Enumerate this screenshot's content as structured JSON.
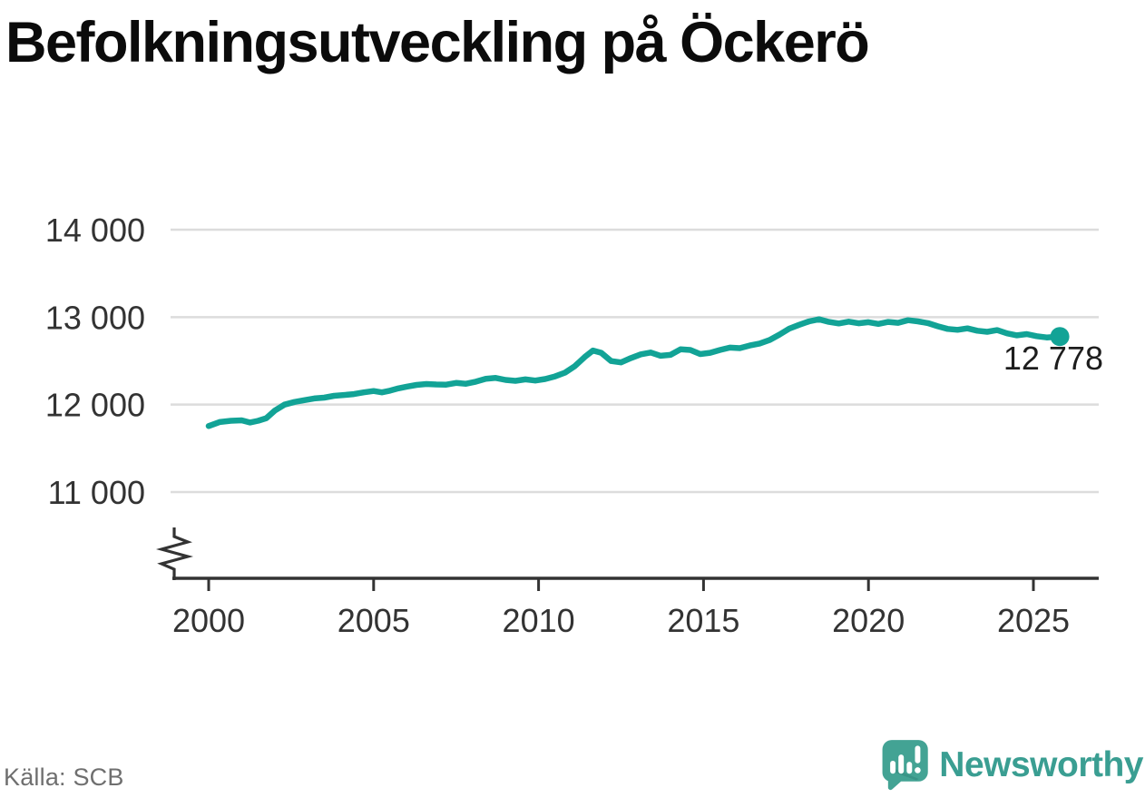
{
  "title": "Befolkningsutveckling på Öckerö",
  "source": "Källa: SCB",
  "branding": {
    "name": "Newsworthy"
  },
  "chart_data": {
    "type": "line",
    "title": "Befolkningsutveckling på Öckerö",
    "xlabel": "",
    "ylabel": "",
    "legend": "none",
    "grid": "horizontal",
    "y_axis_break": true,
    "x_range": [
      1998.9,
      2026.98
    ],
    "ylim_visible": [
      11000,
      14000
    ],
    "x_ticks": [
      {
        "v": 2000,
        "label": "2000"
      },
      {
        "v": 2005,
        "label": "2005"
      },
      {
        "v": 2010,
        "label": "2010"
      },
      {
        "v": 2015,
        "label": "2015"
      },
      {
        "v": 2020,
        "label": "2020"
      },
      {
        "v": 2025,
        "label": "2025"
      }
    ],
    "y_ticks": [
      {
        "v": 14000,
        "label": "14 000"
      },
      {
        "v": 13000,
        "label": "13 000"
      },
      {
        "v": 12000,
        "label": "12 000"
      },
      {
        "v": 11000,
        "label": "11 000"
      }
    ],
    "last_value_label": "12 778",
    "last_value": 12778,
    "colors": {
      "line": "#12a396",
      "grid": "#dcdcdc",
      "axis": "#333333",
      "tick_text": "#333333",
      "annotation_text": "#1d1d1d",
      "logo": "#43a394"
    },
    "series": [
      {
        "name": "Befolkning på Öckerö",
        "points": [
          [
            2000.0,
            11755
          ],
          [
            2000.33,
            11800
          ],
          [
            2000.67,
            11815
          ],
          [
            2001.0,
            11820
          ],
          [
            2001.25,
            11795
          ],
          [
            2001.5,
            11815
          ],
          [
            2001.75,
            11845
          ],
          [
            2002.0,
            11930
          ],
          [
            2002.3,
            12000
          ],
          [
            2002.6,
            12030
          ],
          [
            2002.9,
            12050
          ],
          [
            2003.2,
            12070
          ],
          [
            2003.5,
            12080
          ],
          [
            2003.8,
            12100
          ],
          [
            2004.1,
            12110
          ],
          [
            2004.4,
            12120
          ],
          [
            2004.7,
            12140
          ],
          [
            2005.0,
            12155
          ],
          [
            2005.25,
            12140
          ],
          [
            2005.5,
            12160
          ],
          [
            2005.75,
            12185
          ],
          [
            2006.0,
            12205
          ],
          [
            2006.3,
            12225
          ],
          [
            2006.6,
            12235
          ],
          [
            2006.9,
            12230
          ],
          [
            2007.2,
            12228
          ],
          [
            2007.5,
            12248
          ],
          [
            2007.8,
            12238
          ],
          [
            2008.1,
            12262
          ],
          [
            2008.4,
            12295
          ],
          [
            2008.7,
            12305
          ],
          [
            2009.0,
            12282
          ],
          [
            2009.3,
            12272
          ],
          [
            2009.6,
            12288
          ],
          [
            2009.9,
            12275
          ],
          [
            2010.2,
            12292
          ],
          [
            2010.5,
            12322
          ],
          [
            2010.8,
            12365
          ],
          [
            2011.1,
            12440
          ],
          [
            2011.4,
            12545
          ],
          [
            2011.65,
            12618
          ],
          [
            2011.9,
            12592
          ],
          [
            2012.2,
            12498
          ],
          [
            2012.5,
            12482
          ],
          [
            2012.8,
            12532
          ],
          [
            2013.1,
            12575
          ],
          [
            2013.4,
            12595
          ],
          [
            2013.7,
            12558
          ],
          [
            2014.0,
            12568
          ],
          [
            2014.3,
            12632
          ],
          [
            2014.6,
            12625
          ],
          [
            2014.9,
            12578
          ],
          [
            2015.2,
            12592
          ],
          [
            2015.5,
            12625
          ],
          [
            2015.8,
            12652
          ],
          [
            2016.1,
            12645
          ],
          [
            2016.4,
            12675
          ],
          [
            2016.7,
            12698
          ],
          [
            2017.0,
            12738
          ],
          [
            2017.3,
            12800
          ],
          [
            2017.6,
            12868
          ],
          [
            2017.9,
            12912
          ],
          [
            2018.2,
            12952
          ],
          [
            2018.5,
            12975
          ],
          [
            2018.8,
            12945
          ],
          [
            2019.1,
            12928
          ],
          [
            2019.4,
            12948
          ],
          [
            2019.7,
            12930
          ],
          [
            2020.0,
            12942
          ],
          [
            2020.3,
            12922
          ],
          [
            2020.6,
            12945
          ],
          [
            2020.9,
            12935
          ],
          [
            2021.2,
            12965
          ],
          [
            2021.5,
            12952
          ],
          [
            2021.8,
            12932
          ],
          [
            2022.1,
            12895
          ],
          [
            2022.4,
            12865
          ],
          [
            2022.7,
            12855
          ],
          [
            2023.0,
            12872
          ],
          [
            2023.3,
            12845
          ],
          [
            2023.6,
            12832
          ],
          [
            2023.9,
            12852
          ],
          [
            2024.2,
            12815
          ],
          [
            2024.5,
            12792
          ],
          [
            2024.8,
            12806
          ],
          [
            2025.1,
            12782
          ],
          [
            2025.4,
            12768
          ],
          [
            2025.8,
            12778
          ]
        ]
      }
    ]
  }
}
